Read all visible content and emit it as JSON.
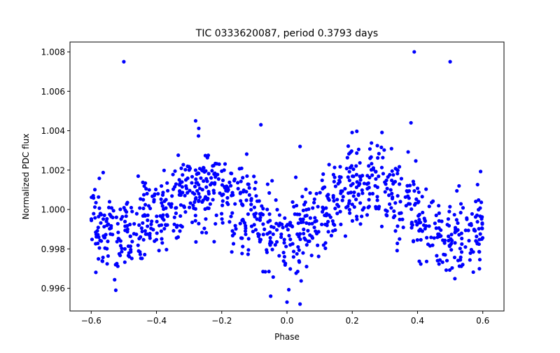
{
  "chart_data": {
    "type": "scatter",
    "title": "TIC 0333620087, period 0.3793 days",
    "xlabel": "Phase",
    "ylabel": "Normalized PDC flux",
    "xlim": [
      -0.665,
      0.665
    ],
    "ylim": [
      0.99485,
      1.0085
    ],
    "xticks": [
      -0.6,
      -0.4,
      -0.2,
      0.0,
      0.2,
      0.4,
      0.6
    ],
    "xtick_labels": [
      "−0.6",
      "−0.4",
      "−0.2",
      "0.0",
      "0.2",
      "0.4",
      "0.6"
    ],
    "yticks": [
      0.996,
      0.998,
      1.0,
      1.002,
      1.004,
      1.006,
      1.008
    ],
    "ytick_labels": [
      "0.996",
      "0.998",
      "1.000",
      "1.002",
      "1.004",
      "1.006",
      "1.008"
    ],
    "grid": false,
    "marker_color": "#0000ff",
    "model": {
      "baseline": 1.0,
      "amplitude": 0.0013,
      "noise_sd": 0.0011,
      "n_points": 1000,
      "x_range": [
        -0.6,
        0.6
      ],
      "shape": "cos(4*pi*phase)"
    },
    "outliers": [
      {
        "x": -0.5,
        "y": 1.0075
      },
      {
        "x": 0.39,
        "y": 1.008
      },
      {
        "x": 0.5,
        "y": 1.0075
      },
      {
        "x": -0.28,
        "y": 1.0045
      },
      {
        "x": -0.08,
        "y": 1.0043
      },
      {
        "x": 0.38,
        "y": 1.0044
      },
      {
        "x": 0.04,
        "y": 0.9952
      },
      {
        "x": 0.0,
        "y": 0.9953
      },
      {
        "x": -0.05,
        "y": 0.9956
      },
      {
        "x": 0.04,
        "y": 1.0032
      }
    ]
  }
}
